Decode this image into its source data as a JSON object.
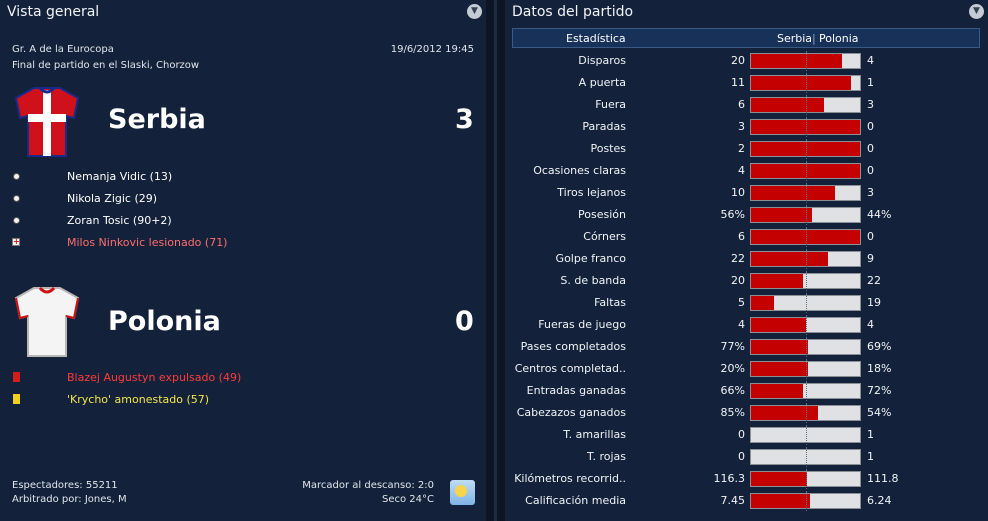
{
  "left_panel": {
    "title": "Vista general",
    "competition": "Gr. A de la Eurocopa",
    "datetime": "19/6/2012 19:45",
    "venue": "Final de partido en el Slaski, Chorzow",
    "home": {
      "name": "Serbia",
      "score": "3",
      "shirt_colors": {
        "base": "#d0101a",
        "cross": "#ffffff",
        "trim": "#1a2a8a"
      },
      "events": [
        {
          "icon": "ball-icon",
          "text": "Nemanja Vidic (13)",
          "color": "#ffffff"
        },
        {
          "icon": "ball-icon",
          "text": "Nikola Zigic (29)",
          "color": "#ffffff"
        },
        {
          "icon": "ball-icon",
          "text": "Zoran Tosic (90+2)",
          "color": "#ffffff"
        },
        {
          "icon": "injury-icon",
          "text": "Milos Ninkovic lesionado (71)",
          "color": "#ff6e6e"
        }
      ]
    },
    "away": {
      "name": "Polonia",
      "score": "0",
      "shirt_colors": {
        "base": "#f4f4f4",
        "trim": "#d01010"
      },
      "events": [
        {
          "icon": "red-card-icon",
          "text": "Blazej Augustyn expulsado (49)",
          "color": "#ff3b3b"
        },
        {
          "icon": "yellow-card-icon",
          "text": "'Krycho' amonestado (57)",
          "color": "#f5e64a"
        }
      ]
    },
    "footer": {
      "attendance": "Espectadores: 55211",
      "referee": "Arbitrado por: Jones, M",
      "halftime": "Marcador al descanso: 2:0",
      "weather": "Seco 24°C",
      "weather_icon": "sun-icon"
    }
  },
  "right_panel": {
    "title": "Datos del partido",
    "header": {
      "stat": "Estadística",
      "home": "Serbia",
      "sep": "|",
      "away": "Polonia"
    },
    "colors": {
      "home_bar": "#c40000",
      "away_bar": "#dfe1e4"
    },
    "rows": [
      {
        "label": "Disparos",
        "home": "20",
        "away": "4",
        "share": 0.833
      },
      {
        "label": "A puerta",
        "home": "11",
        "away": "1",
        "share": 0.917
      },
      {
        "label": "Fuera",
        "home": "6",
        "away": "3",
        "share": 0.667
      },
      {
        "label": "Paradas",
        "home": "3",
        "away": "0",
        "share": 1.0
      },
      {
        "label": "Postes",
        "home": "2",
        "away": "0",
        "share": 1.0
      },
      {
        "label": "Ocasiones claras",
        "home": "4",
        "away": "0",
        "share": 1.0
      },
      {
        "label": "Tiros lejanos",
        "home": "10",
        "away": "3",
        "share": 0.769
      },
      {
        "label": "Posesión",
        "home": "56%",
        "away": "44%",
        "share": 0.56
      },
      {
        "label": "Córners",
        "home": "6",
        "away": "0",
        "share": 1.0
      },
      {
        "label": "Golpe franco",
        "home": "22",
        "away": "9",
        "share": 0.71
      },
      {
        "label": "S. de banda",
        "home": "20",
        "away": "22",
        "share": 0.476
      },
      {
        "label": "Faltas",
        "home": "5",
        "away": "19",
        "share": 0.208
      },
      {
        "label": "Fueras de juego",
        "home": "4",
        "away": "4",
        "share": 0.5
      },
      {
        "label": "Pases completados",
        "home": "77%",
        "away": "69%",
        "share": 0.527
      },
      {
        "label": "Centros completad..",
        "home": "20%",
        "away": "18%",
        "share": 0.526
      },
      {
        "label": "Entradas ganadas",
        "home": "66%",
        "away": "72%",
        "share": 0.478
      },
      {
        "label": "Cabezazos ganados",
        "home": "85%",
        "away": "54%",
        "share": 0.612
      },
      {
        "label": "T. amarillas",
        "home": "0",
        "away": "1",
        "share": 0.0
      },
      {
        "label": "T. rojas",
        "home": "0",
        "away": "1",
        "share": 0.0
      },
      {
        "label": "Kilómetros recorrid..",
        "home": "116.3",
        "away": "111.8",
        "share": 0.51
      },
      {
        "label": "Calificación media",
        "home": "7.45",
        "away": "6.24",
        "share": 0.544
      }
    ]
  }
}
